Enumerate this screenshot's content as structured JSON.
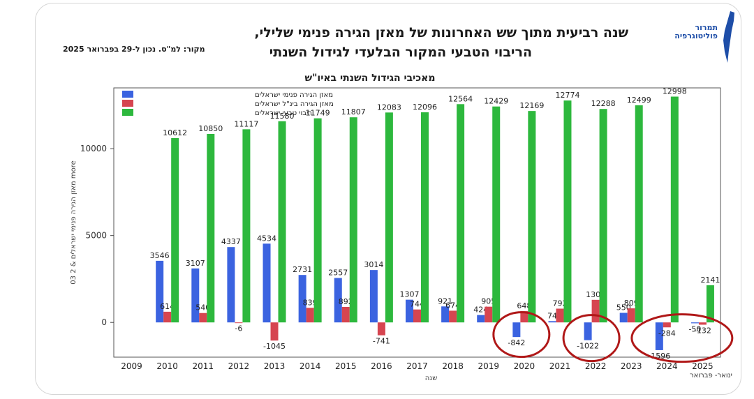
{
  "header": {
    "title_line1": "שנה רביעית מתוך שש האחרונות של מאזן הגירה פנימי שלילי,",
    "title_line2": "הריבוי הטבעי המקור הבלעדי לגידול השנתי",
    "source": "מקור: למ\"ס. נכון ל-29 בפברואר 2025",
    "logo_text": "תמרור פוליטוגרפיה",
    "logo_icon": "israel-map-icon"
  },
  "chart_data": {
    "type": "bar",
    "title": "מאכיבי הגידול השנתי באיו\"ש",
    "xlabel": "שנה",
    "ylabel": "03 2 & מאזן הגירה פנימי ישראלים more",
    "ylim": [
      -2000,
      13500
    ],
    "yticks": [
      0,
      5000,
      10000
    ],
    "grid": false,
    "legend_position": "top-left",
    "categories": [
      "2009",
      "2010",
      "2011",
      "2012",
      "2013",
      "2014",
      "2015",
      "2016",
      "2017",
      "2018",
      "2019",
      "2020",
      "2021",
      "2022",
      "2023",
      "2024",
      "2025"
    ],
    "series": [
      {
        "name": "מאזן הגירה פנימי ישראלים",
        "color": "#3b63e0",
        "values": [
          null,
          3546,
          3107,
          4337,
          4534,
          2731,
          2557,
          3014,
          1307,
          921,
          424,
          -842,
          74,
          -1022,
          550,
          -1596,
          -50
        ]
      },
      {
        "name": "מאזן הגירה בינ\"ל ישראלים",
        "color": "#d64550",
        "values": [
          null,
          614,
          540,
          -6,
          -1045,
          839,
          892,
          -741,
          744,
          674,
          905,
          648,
          792,
          1300,
          809,
          -284,
          -132
        ]
      },
      {
        "name": "ריבוי טבעי ישראלים",
        "color": "#2db83d",
        "values": [
          null,
          10612,
          10850,
          11117,
          11580,
          11749,
          11807,
          12083,
          12096,
          12564,
          12429,
          12169,
          12774,
          12288,
          12499,
          12998,
          2141
        ]
      }
    ],
    "annotations": [
      "2020",
      "2022",
      "2024-2025"
    ],
    "x_note": "ינואר- פברואר"
  },
  "colors": {
    "highlight_circle": "#b01818"
  }
}
